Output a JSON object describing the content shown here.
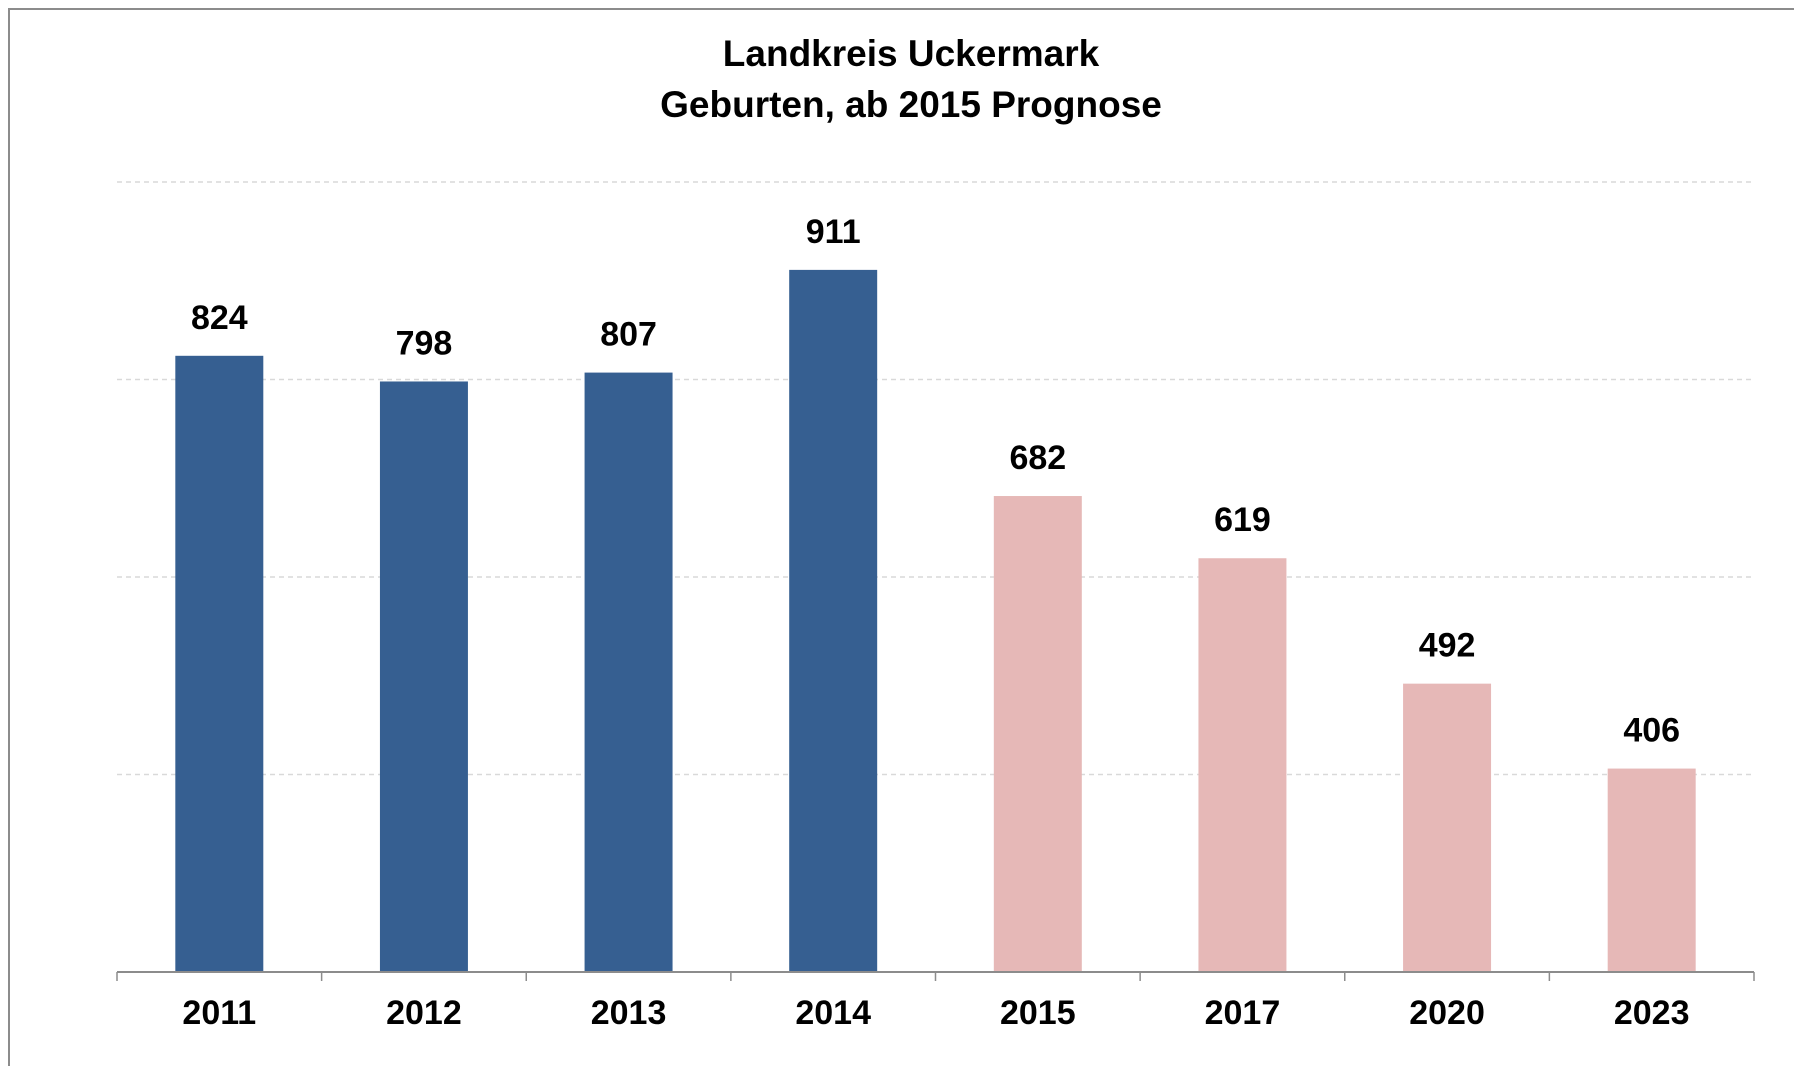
{
  "chart_data": {
    "type": "bar",
    "title": [
      "Landkreis  Uckermark",
      "Geburten, ab 2015 Prognose"
    ],
    "categories": [
      "2011",
      "2012",
      "2013",
      "2014",
      "2015",
      "2017",
      "2020",
      "2023"
    ],
    "values": [
      824,
      798,
      807,
      911,
      682,
      619,
      492,
      406
    ],
    "colors": [
      "#365f91",
      "#365f91",
      "#365f91",
      "#365f91",
      "#e6b8b7",
      "#e6b8b7",
      "#e6b8b7",
      "#e6b8b7"
    ],
    "ylim": [
      200,
      1000
    ],
    "yticks": [
      200,
      400,
      600,
      800,
      1000
    ],
    "grid": true
  }
}
